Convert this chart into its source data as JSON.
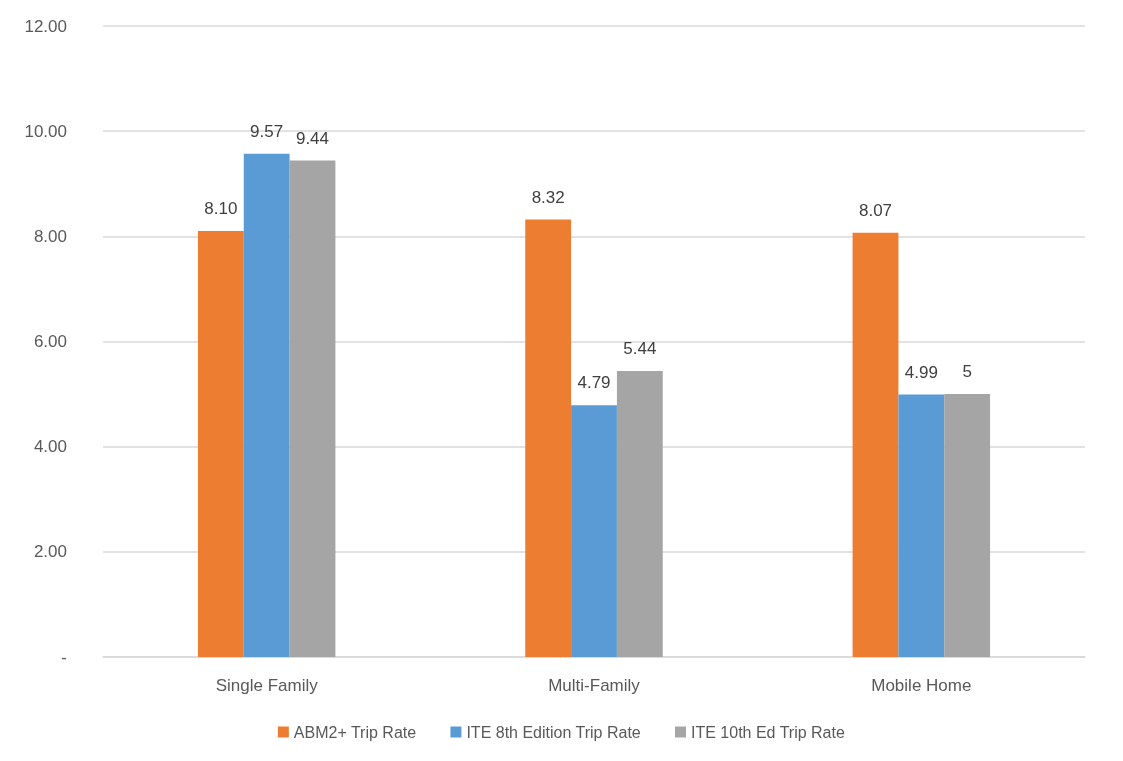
{
  "chart_data": {
    "type": "bar",
    "categories": [
      "Single Family",
      "Multi-Family",
      "Mobile Home"
    ],
    "series": [
      {
        "name": "ABM2+ Trip Rate",
        "color": "#ed7d31",
        "values": [
          8.1,
          8.32,
          8.07
        ],
        "value_labels": [
          "8.10",
          "8.32",
          "8.07"
        ]
      },
      {
        "name": "ITE 8th Edition Trip Rate",
        "color": "#5b9bd5",
        "values": [
          9.57,
          4.79,
          4.99
        ],
        "value_labels": [
          "9.57",
          "4.79",
          "4.99"
        ]
      },
      {
        "name": "ITE 10th Ed Trip Rate",
        "color": "#a5a5a5",
        "values": [
          9.44,
          5.44,
          5
        ],
        "value_labels": [
          "9.44",
          "5.44",
          "5"
        ]
      }
    ],
    "ylim": [
      0,
      12
    ],
    "yticks": [
      {
        "value": 0,
        "label": "-"
      },
      {
        "value": 2,
        "label": "2.00"
      },
      {
        "value": 4,
        "label": "4.00"
      },
      {
        "value": 6,
        "label": "6.00"
      },
      {
        "value": 8,
        "label": "8.00"
      },
      {
        "value": 10,
        "label": "10.00"
      },
      {
        "value": 12,
        "label": "12.00"
      }
    ],
    "grid": "y",
    "legend": "bottom"
  }
}
